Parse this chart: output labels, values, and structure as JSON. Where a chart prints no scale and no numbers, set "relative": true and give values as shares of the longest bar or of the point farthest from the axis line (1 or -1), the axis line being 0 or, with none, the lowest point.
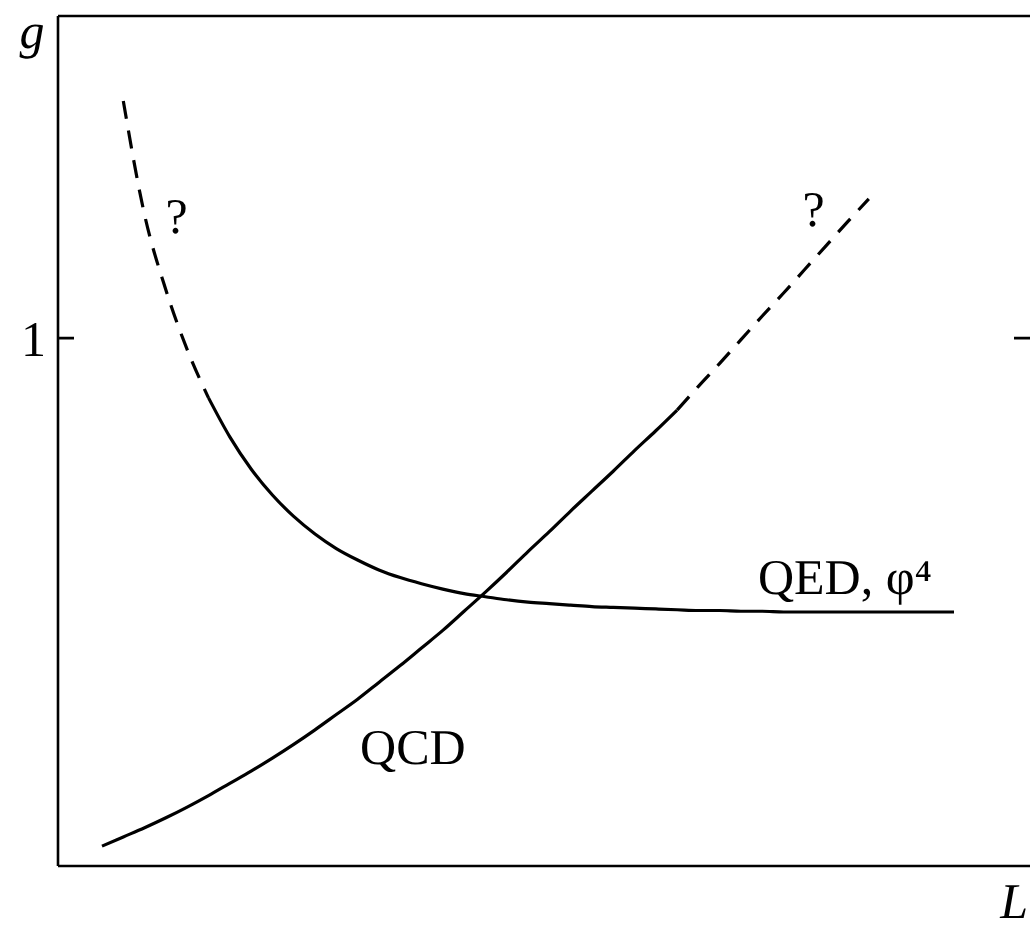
{
  "chart_data": {
    "type": "line",
    "relative": true,
    "xlabel": "L",
    "ylabel": "g",
    "categories": [
      null,
      null,
      null,
      null,
      null,
      null,
      null,
      null,
      null,
      null,
      null,
      null,
      null,
      null,
      null,
      null,
      null,
      null,
      null,
      null,
      null,
      null,
      null,
      null,
      null,
      null,
      null,
      null,
      null,
      null,
      null,
      null,
      null,
      null,
      null,
      null,
      null,
      null,
      null,
      null,
      null
    ],
    "series": [
      {
        "color": "#000000",
        "line_style": "dashed",
        "values": [
          null,
          1.0,
          0.851,
          0.753,
          0.675,
          0.612,
          null,
          null,
          null,
          null,
          null,
          null,
          null,
          null,
          null,
          null,
          null,
          null,
          null,
          null,
          null,
          null,
          null,
          null,
          null,
          null,
          null,
          null,
          null,
          null,
          null,
          null,
          null,
          null,
          null,
          null,
          null,
          null,
          null,
          null,
          null
        ]
      },
      {
        "name": "QED, φ⁴",
        "color": "#000000",
        "line_style": "solid",
        "values": [
          null,
          null,
          null,
          null,
          null,
          0.612,
          0.561,
          0.519,
          0.485,
          0.457,
          0.434,
          0.415,
          0.4,
          0.387,
          0.377,
          0.369,
          0.362,
          0.356,
          0.352,
          0.348,
          0.345,
          0.343,
          0.341,
          0.339,
          0.338,
          0.337,
          0.336,
          0.335,
          0.334,
          0.334,
          0.333,
          0.333,
          0.332,
          0.332,
          0.332,
          0.332,
          0.332,
          0.332,
          0.332,
          0.332,
          0.332
        ]
      },
      {
        "name": "QCD",
        "color": "#000000",
        "line_style": "solid",
        "values": [
          0.026,
          0.038,
          0.05,
          0.063,
          0.077,
          0.092,
          0.108,
          0.124,
          0.141,
          0.159,
          0.178,
          0.198,
          0.218,
          0.24,
          0.262,
          0.285,
          0.308,
          0.333,
          0.358,
          0.384,
          0.411,
          0.437,
          0.464,
          0.49,
          0.516,
          0.543,
          0.569,
          0.596,
          null,
          null,
          null,
          null,
          null,
          null,
          null,
          null,
          null,
          null,
          null,
          null,
          null
        ]
      },
      {
        "color": "#000000",
        "line_style": "dashed",
        "values": [
          null,
          null,
          null,
          null,
          null,
          null,
          null,
          null,
          null,
          null,
          null,
          null,
          null,
          null,
          null,
          null,
          null,
          null,
          null,
          null,
          null,
          null,
          null,
          null,
          null,
          null,
          null,
          0.596,
          0.627,
          0.657,
          0.688,
          0.719,
          0.749,
          0.78,
          0.811,
          0.842,
          0.872,
          null,
          null,
          null,
          null
        ]
      }
    ],
    "ref_lines": [
      {
        "axis": "y",
        "value": 0.69,
        "label": "1"
      }
    ],
    "annotations": [
      "?",
      "?"
    ]
  }
}
